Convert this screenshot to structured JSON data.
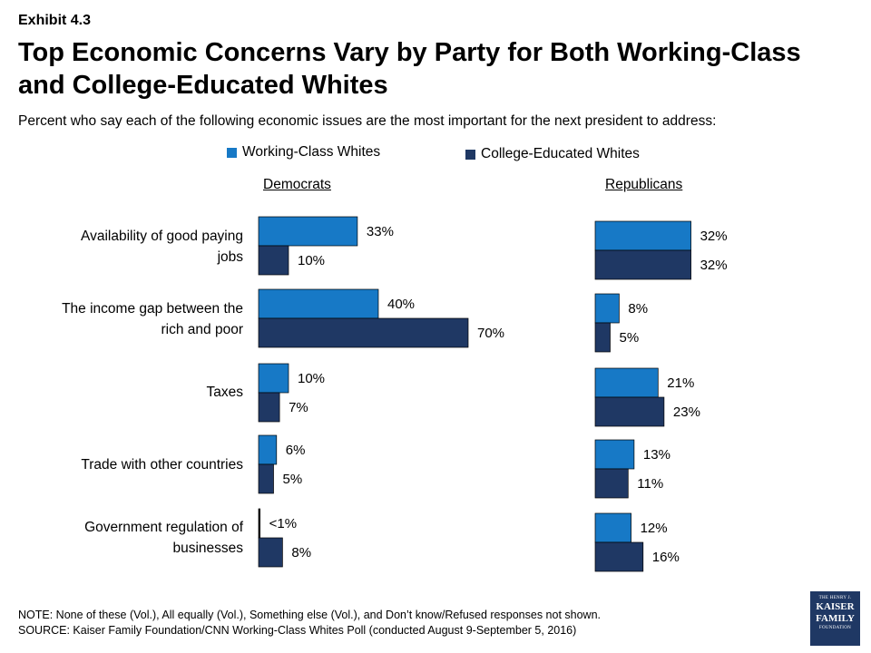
{
  "exhibit_label": "Exhibit 4.3",
  "colors": {
    "working_class": "#1779c6",
    "college_educated": "#1f3864"
  },
  "chart_data": {
    "type": "bar",
    "orientation": "horizontal",
    "title": "Top Economic Concerns Vary by Party for Both Working-Class and College-Educated Whites",
    "subtitle": "Percent who say each of the following economic issues are the most important for the next president to address:",
    "legend": [
      "Working-Class Whites",
      "College-Educated Whites"
    ],
    "legend_position": "top",
    "grid": false,
    "unit": "%",
    "xlim": [
      0,
      100
    ],
    "categories": [
      [
        "Availability of good paying",
        "jobs"
      ],
      [
        "The income gap between the",
        "rich and poor"
      ],
      [
        "Taxes"
      ],
      [
        "Trade with other countries"
      ],
      [
        "Government regulation of",
        "businesses"
      ]
    ],
    "panels": [
      {
        "title": "Democrats",
        "series": [
          {
            "name": "Working-Class Whites",
            "values": [
              33,
              40,
              10,
              6,
              0.5
            ],
            "labels": [
              "33%",
              "40%",
              "10%",
              "6%",
              "<1%"
            ]
          },
          {
            "name": "College-Educated Whites",
            "values": [
              10,
              70,
              7,
              5,
              8
            ],
            "labels": [
              "10%",
              "70%",
              "7%",
              "5%",
              "8%"
            ]
          }
        ]
      },
      {
        "title": "Republicans",
        "series": [
          {
            "name": "Working-Class Whites",
            "values": [
              32,
              8,
              21,
              13,
              12
            ],
            "labels": [
              "32%",
              "8%",
              "21%",
              "13%",
              "12%"
            ]
          },
          {
            "name": "College-Educated Whites",
            "values": [
              32,
              5,
              23,
              11,
              16
            ],
            "labels": [
              "32%",
              "5%",
              "23%",
              "11%",
              "16%"
            ]
          }
        ]
      }
    ]
  },
  "notes": {
    "note": "NOTE: None of these (Vol.), All equally (Vol.), Something else (Vol.), and Don’t know/Refused responses not shown.",
    "source": "SOURCE: Kaiser Family Foundation/CNN Working-Class Whites Poll (conducted August 9-September 5, 2016)"
  },
  "logo": {
    "line1": "THE HENRY J.",
    "line2": "KAISER",
    "line3": "FAMILY",
    "line4": "FOUNDATION"
  }
}
